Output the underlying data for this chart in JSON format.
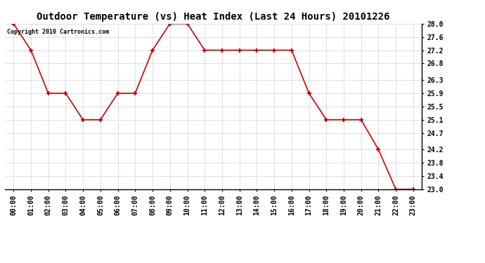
{
  "title": "Outdoor Temperature (vs) Heat Index (Last 24 Hours) 20101226",
  "copyright": "Copyright 2010 Cartronics.com",
  "x_labels": [
    "00:00",
    "01:00",
    "02:00",
    "03:00",
    "04:00",
    "05:00",
    "06:00",
    "07:00",
    "08:00",
    "09:00",
    "10:00",
    "11:00",
    "12:00",
    "13:00",
    "14:00",
    "15:00",
    "16:00",
    "17:00",
    "18:00",
    "19:00",
    "20:00",
    "21:00",
    "22:00",
    "23:00"
  ],
  "y_values": [
    28.0,
    27.2,
    25.9,
    25.9,
    25.1,
    25.1,
    25.9,
    25.9,
    27.2,
    28.0,
    28.0,
    27.2,
    27.2,
    27.2,
    27.2,
    27.2,
    27.2,
    25.9,
    25.1,
    25.1,
    25.1,
    24.2,
    23.0,
    23.0
  ],
  "y_min": 23.0,
  "y_max": 28.0,
  "y_ticks": [
    23.0,
    23.4,
    23.8,
    24.2,
    24.7,
    25.1,
    25.5,
    25.9,
    26.3,
    26.8,
    27.2,
    27.6,
    28.0
  ],
  "line_color": "#cc0000",
  "marker_color": "#cc0000",
  "background_color": "#ffffff",
  "grid_color": "#bbbbbb",
  "title_fontsize": 10,
  "copyright_fontsize": 6,
  "tick_fontsize": 7,
  "ytick_fontsize": 7
}
